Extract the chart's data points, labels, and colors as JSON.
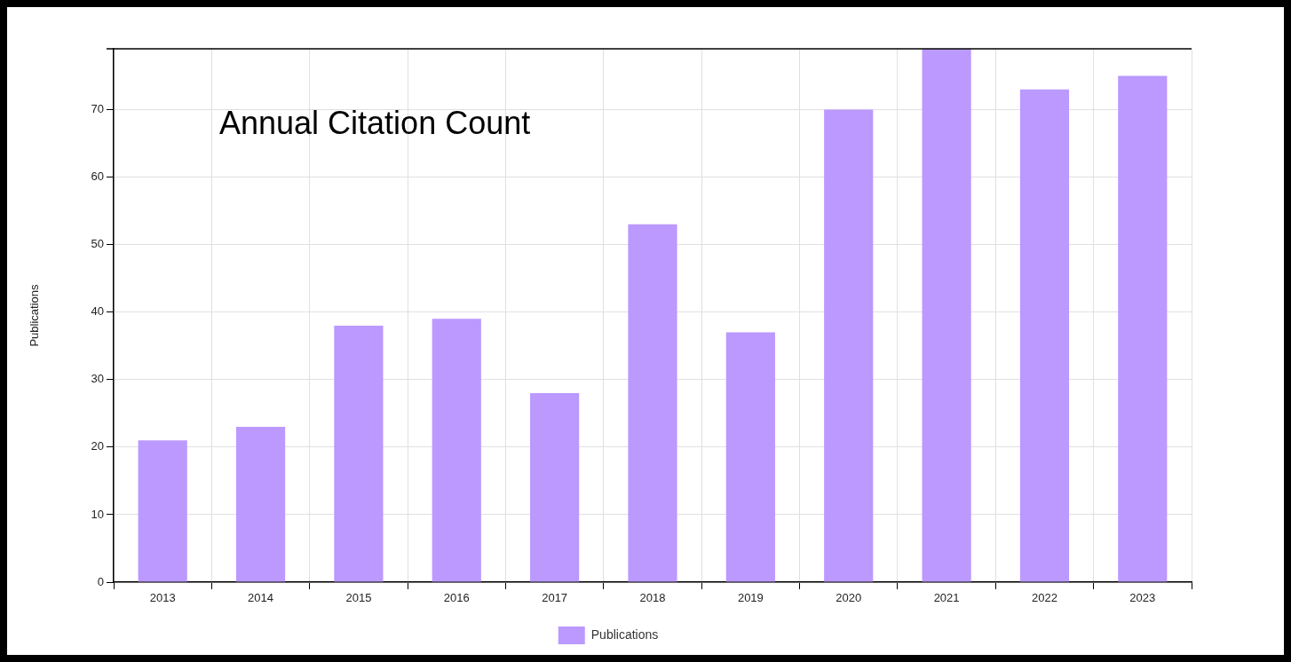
{
  "chart_data": {
    "type": "bar",
    "title": "Annual Citation Count",
    "ylabel": "Publications",
    "categories": [
      "2013",
      "2014",
      "2015",
      "2016",
      "2017",
      "2018",
      "2019",
      "2020",
      "2021",
      "2022",
      "2023"
    ],
    "series": [
      {
        "name": "Publications",
        "color": "#bb99ff",
        "values": [
          21,
          23,
          38,
          39,
          28,
          53,
          37,
          70,
          79,
          73,
          75
        ]
      }
    ],
    "ylim": [
      0,
      79
    ],
    "yticks": [
      0,
      10,
      20,
      30,
      40,
      50,
      60,
      70
    ],
    "grid": true,
    "legend": "bottom"
  }
}
